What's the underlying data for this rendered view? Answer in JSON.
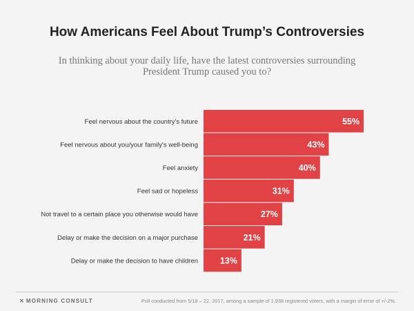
{
  "header": {
    "title": "How Americans Feel About Trump’s Controversies",
    "subtitle": "In thinking about your daily life, have the latest controversies surrounding President Trump caused you to?"
  },
  "footer": {
    "brand_icon": "morning-consult-logo-icon",
    "brand": "MORNING CONSULT",
    "note": "Poll conducted from 5/18 – 22, 2017, among a sample of 1,938 registered voters, with a margin of error of +/-2%."
  },
  "colors": {
    "bar": "#e04245",
    "bar_label": "#ffffff",
    "category_label": "#333333"
  },
  "chart_data": {
    "type": "bar",
    "orientation": "horizontal",
    "title": "How Americans Feel About Trump’s Controversies",
    "subtitle": "In thinking about your daily life, have the latest controversies surrounding President Trump caused you to?",
    "xlabel": "",
    "ylabel": "",
    "categories": [
      "Feel nervous about the country's future",
      "Feel nervous about you/your family's well-being",
      "Feel anxiety",
      "Feel sad or hopeless",
      "Not travel to a certain place you otherwise would have",
      "Delay or make the decision on a major purchase",
      "Delay or make the decision to have children"
    ],
    "values": [
      55,
      43,
      40,
      31,
      27,
      21,
      13
    ],
    "data_labels": [
      "55%",
      "43%",
      "40%",
      "31%",
      "27%",
      "21%",
      "13%"
    ],
    "unit": "%",
    "xlim": [
      0,
      55
    ],
    "grid": false,
    "legend": "none"
  }
}
